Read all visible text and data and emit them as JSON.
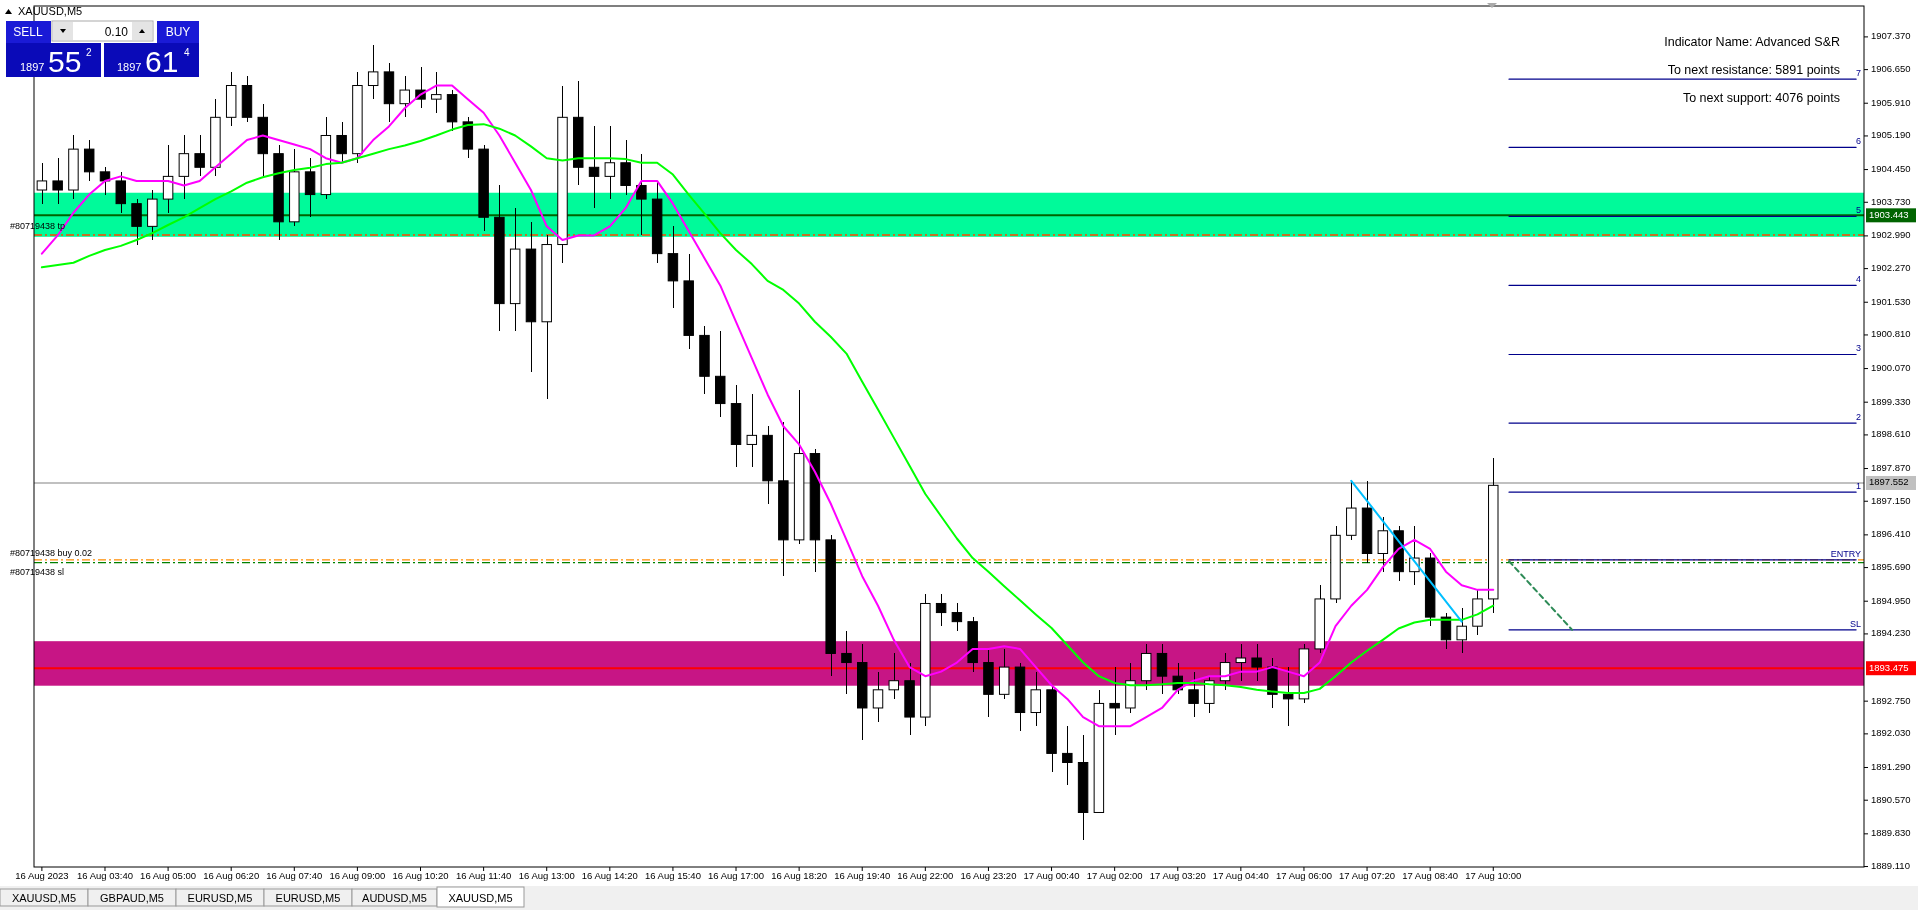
{
  "chart_data": {
    "type": "candlestick",
    "title": "XAUUSD,M5",
    "categories": [
      "16 Aug 2023",
      null,
      null,
      null,
      "16 Aug 03:40",
      null,
      null,
      null,
      "16 Aug 05:00",
      null,
      null,
      null,
      "16 Aug 06:20",
      null,
      null,
      null,
      "16 Aug 07:40",
      null,
      null,
      null,
      "16 Aug 09:00",
      null,
      null,
      null,
      "16 Aug 10:20",
      null,
      null,
      null,
      "16 Aug 11:40",
      null,
      null,
      null,
      "16 Aug 13:00",
      null,
      null,
      null,
      "16 Aug 14:20",
      null,
      null,
      null,
      "16 Aug 15:40",
      null,
      null,
      null,
      "16 Aug 17:00",
      null,
      null,
      null,
      "16 Aug 18:20",
      null,
      null,
      null,
      "16 Aug 19:40",
      null,
      null,
      null,
      "16 Aug 22:00",
      null,
      null,
      null,
      "16 Aug 23:20",
      null,
      null,
      null,
      "17 Aug 00:40",
      null,
      null,
      null,
      "17 Aug 02:00",
      null,
      null,
      null,
      "17 Aug 03:20",
      null,
      null,
      null,
      "17 Aug 04:40",
      null,
      null,
      null,
      "17 Aug 06:00",
      null,
      null,
      null,
      "17 Aug 07:20",
      null,
      null,
      null,
      "17 Aug 08:40",
      null,
      null,
      null,
      "17 Aug 10:00",
      null,
      null,
      null,
      null,
      null,
      null,
      null,
      null,
      null,
      null,
      null,
      null,
      null,
      null,
      null,
      null,
      null,
      null,
      null,
      null,
      null,
      null,
      null
    ],
    "ohlc": [
      [
        1904.0,
        1904.6,
        1903.7,
        1904.2
      ],
      [
        1904.2,
        1904.7,
        1903.7,
        1904.0
      ],
      [
        1904.0,
        1905.2,
        1903.8,
        1904.9
      ],
      [
        1904.9,
        1905.1,
        1904.2,
        1904.4
      ],
      [
        1904.4,
        1904.5,
        1903.9,
        1904.2
      ],
      [
        1904.2,
        1904.4,
        1903.5,
        1903.7
      ],
      [
        1903.7,
        1903.8,
        1902.8,
        1903.2
      ],
      [
        1903.2,
        1904.0,
        1902.9,
        1903.8
      ],
      [
        1903.8,
        1905.0,
        1903.5,
        1904.3
      ],
      [
        1904.3,
        1905.2,
        1903.8,
        1904.8
      ],
      [
        1904.8,
        1905.2,
        1904.3,
        1904.5
      ],
      [
        1904.5,
        1906.0,
        1904.3,
        1905.6
      ],
      [
        1905.6,
        1906.6,
        1905.4,
        1906.3
      ],
      [
        1906.3,
        1906.5,
        1905.5,
        1905.6
      ],
      [
        1905.6,
        1905.9,
        1904.3,
        1904.8
      ],
      [
        1904.8,
        1905.0,
        1902.9,
        1903.3
      ],
      [
        1903.3,
        1904.9,
        1903.2,
        1904.4
      ],
      [
        1904.4,
        1904.7,
        1903.4,
        1903.9
      ],
      [
        1903.9,
        1905.6,
        1903.8,
        1905.2
      ],
      [
        1905.2,
        1905.5,
        1904.6,
        1904.8
      ],
      [
        1904.8,
        1906.6,
        1904.6,
        1906.3
      ],
      [
        1906.3,
        1907.2,
        1906.0,
        1906.6
      ],
      [
        1906.6,
        1906.8,
        1905.5,
        1905.9
      ],
      [
        1905.9,
        1906.5,
        1905.6,
        1906.2
      ],
      [
        1906.2,
        1906.7,
        1905.8,
        1906.0
      ],
      [
        1906.0,
        1906.6,
        1905.7,
        1906.1
      ],
      [
        1906.1,
        1906.2,
        1905.3,
        1905.5
      ],
      [
        1905.5,
        1905.6,
        1904.7,
        1904.9
      ],
      [
        1904.9,
        1905.0,
        1903.1,
        1903.4
      ],
      [
        1903.4,
        1904.1,
        1900.9,
        1901.5
      ],
      [
        1901.5,
        1903.6,
        1900.9,
        1902.7
      ],
      [
        1902.7,
        1903.3,
        1900.0,
        1901.1
      ],
      [
        1901.1,
        1903.0,
        1899.4,
        1902.8
      ],
      [
        1902.8,
        1906.3,
        1902.4,
        1905.6
      ],
      [
        1905.6,
        1906.4,
        1904.1,
        1904.5
      ],
      [
        1904.5,
        1905.4,
        1903.6,
        1904.3
      ],
      [
        1904.3,
        1905.4,
        1903.8,
        1904.6
      ],
      [
        1904.6,
        1905.1,
        1903.9,
        1904.1
      ],
      [
        1904.1,
        1904.8,
        1903.0,
        1903.8
      ],
      [
        1903.8,
        1904.2,
        1902.4,
        1902.6
      ],
      [
        1902.6,
        1903.2,
        1901.4,
        1902.0
      ],
      [
        1902.0,
        1902.6,
        1900.5,
        1900.8
      ],
      [
        1900.8,
        1901.0,
        1899.5,
        1899.9
      ],
      [
        1899.9,
        1900.9,
        1899.0,
        1899.3
      ],
      [
        1899.3,
        1899.7,
        1897.9,
        1898.4
      ],
      [
        1898.4,
        1899.5,
        1897.9,
        1898.6
      ],
      [
        1898.6,
        1898.8,
        1897.1,
        1897.6
      ],
      [
        1897.6,
        1898.9,
        1895.5,
        1896.3
      ],
      [
        1896.3,
        1899.6,
        1896.2,
        1898.2
      ],
      [
        1898.2,
        1898.3,
        1895.6,
        1896.3
      ],
      [
        1896.3,
        1896.4,
        1893.3,
        1893.8
      ],
      [
        1893.8,
        1894.3,
        1892.9,
        1893.6
      ],
      [
        1893.6,
        1894.0,
        1891.9,
        1892.6
      ],
      [
        1892.6,
        1893.4,
        1892.3,
        1893.0
      ],
      [
        1893.0,
        1893.8,
        1892.8,
        1893.2
      ],
      [
        1893.2,
        1893.6,
        1892.0,
        1892.4
      ],
      [
        1892.4,
        1895.1,
        1892.2,
        1894.9
      ],
      [
        1894.9,
        1895.1,
        1894.4,
        1894.7
      ],
      [
        1894.7,
        1894.9,
        1894.3,
        1894.5
      ],
      [
        1894.5,
        1894.6,
        1893.4,
        1893.6
      ],
      [
        1893.6,
        1893.9,
        1892.4,
        1892.9
      ],
      [
        1892.9,
        1893.9,
        1892.8,
        1893.5
      ],
      [
        1893.5,
        1893.6,
        1892.1,
        1892.5
      ],
      [
        1892.5,
        1893.4,
        1892.2,
        1893.0
      ],
      [
        1893.0,
        1893.1,
        1891.2,
        1891.6
      ],
      [
        1891.6,
        1892.2,
        1890.9,
        1891.4
      ],
      [
        1891.4,
        1892.0,
        1889.7,
        1890.3
      ],
      [
        1890.3,
        1893.0,
        1890.3,
        1892.7
      ],
      [
        1892.7,
        1893.5,
        1892.0,
        1892.6
      ],
      [
        1892.6,
        1893.6,
        1892.5,
        1893.2
      ],
      [
        1893.2,
        1894.0,
        1893.0,
        1893.8
      ],
      [
        1893.8,
        1894.0,
        1892.9,
        1893.3
      ],
      [
        1893.3,
        1893.6,
        1892.9,
        1893.0
      ],
      [
        1893.0,
        1893.4,
        1892.4,
        1892.7
      ],
      [
        1892.7,
        1893.3,
        1892.5,
        1893.2
      ],
      [
        1893.2,
        1893.8,
        1893.0,
        1893.6
      ],
      [
        1893.6,
        1894.0,
        1893.2,
        1893.7
      ],
      [
        1893.7,
        1894.0,
        1893.2,
        1893.5
      ],
      [
        1893.5,
        1893.7,
        1892.6,
        1892.9
      ],
      [
        1892.9,
        1893.5,
        1892.2,
        1892.8
      ],
      [
        1892.8,
        1894.0,
        1892.7,
        1893.9
      ],
      [
        1893.9,
        1895.3,
        1893.8,
        1895.0
      ],
      [
        1895.0,
        1896.6,
        1894.9,
        1896.4
      ],
      [
        1896.4,
        1897.6,
        1896.3,
        1897.0
      ],
      [
        1897.0,
        1897.6,
        1895.8,
        1896.0
      ],
      [
        1896.0,
        1896.8,
        1895.6,
        1896.5
      ],
      [
        1896.5,
        1896.6,
        1895.4,
        1895.6
      ],
      [
        1895.6,
        1896.6,
        1895.3,
        1895.9
      ],
      [
        1895.9,
        1896.0,
        1894.4,
        1894.6
      ],
      [
        1894.6,
        1894.7,
        1893.9,
        1894.1
      ],
      [
        1894.1,
        1894.8,
        1893.8,
        1894.4
      ],
      [
        1894.4,
        1895.2,
        1894.2,
        1895.0
      ],
      [
        1895.0,
        1898.1,
        1894.7,
        1897.5
      ],
      null,
      null,
      null,
      null,
      null,
      null,
      null,
      null,
      null,
      null,
      null,
      null,
      null,
      null,
      null,
      null,
      null,
      null,
      null,
      null,
      null,
      null,
      null
    ],
    "series": [
      {
        "type": "line",
        "color": "#ff00ff",
        "values": [
          1902.6,
          1903.0,
          1903.5,
          1903.9,
          1904.2,
          1904.3,
          1904.2,
          1904.2,
          1904.2,
          1904.1,
          1904.2,
          1904.5,
          1904.8,
          1905.1,
          1905.2,
          1905.1,
          1905.0,
          1904.9,
          1904.7,
          1904.6,
          1904.7,
          1905.1,
          1905.4,
          1905.8,
          1906.1,
          1906.3,
          1906.3,
          1906.0,
          1905.7,
          1905.2,
          1904.6,
          1904.0,
          1903.2,
          1902.9,
          1903.0,
          1903.0,
          1903.2,
          1903.6,
          1904.2,
          1904.2,
          1903.7,
          1903.1,
          1902.5,
          1901.9,
          1901.1,
          1900.3,
          1899.5,
          1898.8,
          1898.4,
          1897.8,
          1897.1,
          1896.3,
          1895.5,
          1894.85,
          1894.1,
          1893.5,
          1893.3,
          1893.4,
          1893.6,
          1893.9,
          1893.9,
          1893.96,
          1893.9,
          1893.5,
          1893.1,
          1892.8,
          1892.4,
          1892.2,
          1892.2,
          1892.2,
          1892.4,
          1892.6,
          1893.0,
          1893.2,
          1893.3,
          1893.3,
          1893.4,
          1893.4,
          1893.5,
          1893.4,
          1893.3,
          1893.6,
          1894.4,
          1894.85,
          1895.2,
          1895.7,
          1896.1,
          1896.3,
          1896.1,
          1895.6,
          1895.3,
          1895.2,
          1895.2,
          null,
          null,
          null,
          null,
          null,
          null,
          null,
          null,
          null,
          null,
          null,
          null,
          null,
          null,
          null,
          null,
          null,
          null,
          null,
          null,
          null,
          null,
          null
        ]
      },
      {
        "type": "line",
        "color": "#00ff00",
        "values": [
          1902.3,
          1902.35,
          1902.4,
          1902.55,
          1902.68,
          1902.77,
          1902.9,
          1903.05,
          1903.23,
          1903.4,
          1903.6,
          1903.8,
          1903.97,
          1904.16,
          1904.28,
          1904.37,
          1904.44,
          1904.49,
          1904.57,
          1904.6,
          1904.7,
          1904.8,
          1904.9,
          1904.98,
          1905.08,
          1905.2,
          1905.33,
          1905.43,
          1905.45,
          1905.35,
          1905.2,
          1904.96,
          1904.7,
          1904.65,
          1904.7,
          1904.7,
          1904.7,
          1904.68,
          1904.6,
          1904.6,
          1904.34,
          1903.9,
          1903.48,
          1903.05,
          1902.68,
          1902.37,
          1902.0,
          1901.8,
          1901.5,
          1901.1,
          1900.77,
          1900.4,
          1899.78,
          1899.17,
          1898.55,
          1897.93,
          1897.31,
          1896.82,
          1896.33,
          1895.9,
          1895.6,
          1895.28,
          1894.97,
          1894.66,
          1894.36,
          1893.98,
          1893.6,
          1893.3,
          1893.15,
          1893.1,
          1893.1,
          1893.12,
          1893.15,
          1893.15,
          1893.12,
          1893.1,
          1893.06,
          1893.0,
          1892.96,
          1892.93,
          1892.93,
          1893.02,
          1893.3,
          1893.6,
          1893.86,
          1894.1,
          1894.35,
          1894.48,
          1894.54,
          1894.54,
          1894.54,
          1894.66,
          1894.85,
          null,
          null,
          null,
          null,
          null,
          null,
          null,
          null,
          null,
          null,
          null,
          null,
          null,
          null,
          null,
          null,
          null,
          null,
          null,
          null,
          null,
          null,
          null
        ]
      },
      {
        "type": "line",
        "color": "#00bfff",
        "values": [
          null,
          null,
          null,
          null,
          null,
          null,
          null,
          null,
          null,
          null,
          null,
          null,
          null,
          null,
          null,
          null,
          null,
          null,
          null,
          null,
          null,
          null,
          null,
          null,
          null,
          null,
          null,
          null,
          null,
          null,
          null,
          null,
          null,
          null,
          null,
          null,
          null,
          null,
          null,
          null,
          null,
          null,
          null,
          null,
          null,
          null,
          null,
          null,
          null,
          null,
          null,
          null,
          null,
          null,
          null,
          null,
          null,
          null,
          null,
          null,
          null,
          null,
          null,
          null,
          null,
          null,
          null,
          null,
          null,
          null,
          null,
          null,
          null,
          null,
          null,
          null,
          null,
          null,
          null,
          null,
          null,
          null,
          null,
          1897.6,
          null,
          null,
          null,
          null,
          null,
          null,
          1894.5,
          null,
          null,
          null,
          null,
          null,
          null,
          null,
          null,
          null,
          null,
          null,
          null,
          null,
          null,
          null,
          null,
          null,
          null,
          null,
          null,
          null,
          null,
          null,
          null,
          null
        ]
      },
      {
        "type": "line",
        "color": "#00008b",
        "values": [
          null,
          null,
          null,
          null,
          null,
          null,
          null,
          null,
          null,
          null,
          null,
          null,
          null,
          null,
          null,
          null,
          null,
          null,
          null,
          null,
          null,
          null,
          null,
          null,
          null,
          null,
          null,
          null,
          null,
          null,
          null,
          null,
          null,
          null,
          null,
          null,
          null,
          null,
          null,
          null,
          null,
          null,
          null,
          null,
          null,
          null,
          null,
          null,
          null,
          null,
          null,
          null,
          null,
          null,
          null,
          null,
          null,
          null,
          null,
          null,
          null,
          null,
          null,
          null,
          null,
          null,
          null,
          null,
          null,
          null,
          null,
          null,
          null,
          null,
          null,
          null,
          null,
          null,
          null,
          null,
          null,
          null,
          null,
          null,
          null,
          null,
          null,
          null,
          null,
          null,
          null,
          null,
          null,
          1906.44,
          1906.44,
          1906.44,
          1906.44,
          1906.44,
          1906.44,
          1906.44,
          1906.44,
          1906.44,
          1906.44,
          1906.44,
          1906.44,
          1906.44,
          1906.44,
          1906.44,
          1906.44,
          1906.44,
          1906.44,
          1906.44,
          1906.44,
          1906.44,
          1906.44,
          1906.44
        ]
      },
      {
        "type": "line",
        "color": "#00008b",
        "values": [
          null,
          null,
          null,
          null,
          null,
          null,
          null,
          null,
          null,
          null,
          null,
          null,
          null,
          null,
          null,
          null,
          null,
          null,
          null,
          null,
          null,
          null,
          null,
          null,
          null,
          null,
          null,
          null,
          null,
          null,
          null,
          null,
          null,
          null,
          null,
          null,
          null,
          null,
          null,
          null,
          null,
          null,
          null,
          null,
          null,
          null,
          null,
          null,
          null,
          null,
          null,
          null,
          null,
          null,
          null,
          null,
          null,
          null,
          null,
          null,
          null,
          null,
          null,
          null,
          null,
          null,
          null,
          null,
          null,
          null,
          null,
          null,
          null,
          null,
          null,
          null,
          null,
          null,
          null,
          null,
          null,
          null,
          null,
          null,
          null,
          null,
          null,
          null,
          null,
          null,
          null,
          null,
          null,
          1904.94,
          1904.94,
          1904.94,
          1904.94,
          1904.94,
          1904.94,
          1904.94,
          1904.94,
          1904.94,
          1904.94,
          1904.94,
          1904.94,
          1904.94,
          1904.94,
          1904.94,
          1904.94,
          1904.94,
          1904.94,
          1904.94,
          1904.94,
          1904.94,
          1904.94,
          1904.94
        ]
      },
      {
        "type": "line",
        "color": "#00008b",
        "values": [
          null,
          null,
          null,
          null,
          null,
          null,
          null,
          null,
          null,
          null,
          null,
          null,
          null,
          null,
          null,
          null,
          null,
          null,
          null,
          null,
          null,
          null,
          null,
          null,
          null,
          null,
          null,
          null,
          null,
          null,
          null,
          null,
          null,
          null,
          null,
          null,
          null,
          null,
          null,
          null,
          null,
          null,
          null,
          null,
          null,
          null,
          null,
          null,
          null,
          null,
          null,
          null,
          null,
          null,
          null,
          null,
          null,
          null,
          null,
          null,
          null,
          null,
          null,
          null,
          null,
          null,
          null,
          null,
          null,
          null,
          null,
          null,
          null,
          null,
          null,
          null,
          null,
          null,
          null,
          null,
          null,
          null,
          null,
          null,
          null,
          null,
          null,
          null,
          null,
          null,
          null,
          null,
          null,
          1903.42,
          1903.42,
          1903.42,
          1903.42,
          1903.42,
          1903.42,
          1903.42,
          1903.42,
          1903.42,
          1903.42,
          1903.42,
          1903.42,
          1903.42,
          1903.42,
          1903.42,
          1903.42,
          1903.42,
          1903.42,
          1903.42,
          1903.42,
          1903.42,
          1903.42,
          1903.42
        ]
      },
      {
        "type": "line",
        "color": "#00008b",
        "values": [
          null,
          null,
          null,
          null,
          null,
          null,
          null,
          null,
          null,
          null,
          null,
          null,
          null,
          null,
          null,
          null,
          null,
          null,
          null,
          null,
          null,
          null,
          null,
          null,
          null,
          null,
          null,
          null,
          null,
          null,
          null,
          null,
          null,
          null,
          null,
          null,
          null,
          null,
          null,
          null,
          null,
          null,
          null,
          null,
          null,
          null,
          null,
          null,
          null,
          null,
          null,
          null,
          null,
          null,
          null,
          null,
          null,
          null,
          null,
          null,
          null,
          null,
          null,
          null,
          null,
          null,
          null,
          null,
          null,
          null,
          null,
          null,
          null,
          null,
          null,
          null,
          null,
          null,
          null,
          null,
          null,
          null,
          null,
          null,
          null,
          null,
          null,
          null,
          null,
          null,
          null,
          null,
          null,
          1901.9,
          1901.9,
          1901.9,
          1901.9,
          1901.9,
          1901.9,
          1901.9,
          1901.9,
          1901.9,
          1901.9,
          1901.9,
          1901.9,
          1901.9,
          1901.9,
          1901.9,
          1901.9,
          1901.9,
          1901.9,
          1901.9,
          1901.9,
          1901.9,
          1901.9,
          1901.9
        ]
      },
      {
        "type": "line",
        "color": "#00008b",
        "values": [
          null,
          null,
          null,
          null,
          null,
          null,
          null,
          null,
          null,
          null,
          null,
          null,
          null,
          null,
          null,
          null,
          null,
          null,
          null,
          null,
          null,
          null,
          null,
          null,
          null,
          null,
          null,
          null,
          null,
          null,
          null,
          null,
          null,
          null,
          null,
          null,
          null,
          null,
          null,
          null,
          null,
          null,
          null,
          null,
          null,
          null,
          null,
          null,
          null,
          null,
          null,
          null,
          null,
          null,
          null,
          null,
          null,
          null,
          null,
          null,
          null,
          null,
          null,
          null,
          null,
          null,
          null,
          null,
          null,
          null,
          null,
          null,
          null,
          null,
          null,
          null,
          null,
          null,
          null,
          null,
          null,
          null,
          null,
          null,
          null,
          null,
          null,
          null,
          null,
          null,
          null,
          null,
          null,
          1900.38,
          1900.38,
          1900.38,
          1900.38,
          1900.38,
          1900.38,
          1900.38,
          1900.38,
          1900.38,
          1900.38,
          1900.38,
          1900.38,
          1900.38,
          1900.38,
          1900.38,
          1900.38,
          1900.38,
          1900.38,
          1900.38,
          1900.38,
          1900.38,
          1900.38,
          1900.38
        ]
      },
      {
        "type": "line",
        "color": "#00008b",
        "values": [
          null,
          null,
          null,
          null,
          null,
          null,
          null,
          null,
          null,
          null,
          null,
          null,
          null,
          null,
          null,
          null,
          null,
          null,
          null,
          null,
          null,
          null,
          null,
          null,
          null,
          null,
          null,
          null,
          null,
          null,
          null,
          null,
          null,
          null,
          null,
          null,
          null,
          null,
          null,
          null,
          null,
          null,
          null,
          null,
          null,
          null,
          null,
          null,
          null,
          null,
          null,
          null,
          null,
          null,
          null,
          null,
          null,
          null,
          null,
          null,
          null,
          null,
          null,
          null,
          null,
          null,
          null,
          null,
          null,
          null,
          null,
          null,
          null,
          null,
          null,
          null,
          null,
          null,
          null,
          null,
          null,
          null,
          null,
          null,
          null,
          null,
          null,
          null,
          null,
          null,
          null,
          null,
          null,
          1898.87,
          1898.87,
          1898.87,
          1898.87,
          1898.87,
          1898.87,
          1898.87,
          1898.87,
          1898.87,
          1898.87,
          1898.87,
          1898.87,
          1898.87,
          1898.87,
          1898.87,
          1898.87,
          1898.87,
          1898.87,
          1898.87,
          1898.87,
          1898.87,
          1898.87,
          1898.87
        ]
      },
      {
        "type": "line",
        "color": "#00008b",
        "values": [
          null,
          null,
          null,
          null,
          null,
          null,
          null,
          null,
          null,
          null,
          null,
          null,
          null,
          null,
          null,
          null,
          null,
          null,
          null,
          null,
          null,
          null,
          null,
          null,
          null,
          null,
          null,
          null,
          null,
          null,
          null,
          null,
          null,
          null,
          null,
          null,
          null,
          null,
          null,
          null,
          null,
          null,
          null,
          null,
          null,
          null,
          null,
          null,
          null,
          null,
          null,
          null,
          null,
          null,
          null,
          null,
          null,
          null,
          null,
          null,
          null,
          null,
          null,
          null,
          null,
          null,
          null,
          null,
          null,
          null,
          null,
          null,
          null,
          null,
          null,
          null,
          null,
          null,
          null,
          null,
          null,
          null,
          null,
          null,
          null,
          null,
          null,
          null,
          null,
          null,
          null,
          null,
          null,
          1897.35,
          1897.35,
          1897.35,
          1897.35,
          1897.35,
          1897.35,
          1897.35,
          1897.35,
          1897.35,
          1897.35,
          1897.35,
          1897.35,
          1897.35,
          1897.35,
          1897.35,
          1897.35,
          1897.35,
          1897.35,
          1897.35,
          1897.35,
          1897.35,
          1897.35,
          1897.35
        ]
      },
      {
        "type": "line",
        "color": "#00008b",
        "values": [
          null,
          null,
          null,
          null,
          null,
          null,
          null,
          null,
          null,
          null,
          null,
          null,
          null,
          null,
          null,
          null,
          null,
          null,
          null,
          null,
          null,
          null,
          null,
          null,
          null,
          null,
          null,
          null,
          null,
          null,
          null,
          null,
          null,
          null,
          null,
          null,
          null,
          null,
          null,
          null,
          null,
          null,
          null,
          null,
          null,
          null,
          null,
          null,
          null,
          null,
          null,
          null,
          null,
          null,
          null,
          null,
          null,
          null,
          null,
          null,
          null,
          null,
          null,
          null,
          null,
          null,
          null,
          null,
          null,
          null,
          null,
          null,
          null,
          null,
          null,
          null,
          null,
          null,
          null,
          null,
          null,
          null,
          null,
          null,
          null,
          null,
          null,
          null,
          null,
          null,
          null,
          null,
          null,
          1895.86,
          1895.86,
          1895.86,
          1895.86,
          1895.86,
          1895.86,
          1895.86,
          1895.86,
          1895.86,
          1895.86,
          1895.86,
          1895.86,
          1895.86,
          1895.86,
          1895.86,
          1895.86,
          1895.86,
          1895.86,
          1895.86,
          1895.86,
          1895.86,
          1895.86,
          1895.86
        ]
      },
      {
        "type": "line",
        "color": "#00008b",
        "values": [
          null,
          null,
          null,
          null,
          null,
          null,
          null,
          null,
          null,
          null,
          null,
          null,
          null,
          null,
          null,
          null,
          null,
          null,
          null,
          null,
          null,
          null,
          null,
          null,
          null,
          null,
          null,
          null,
          null,
          null,
          null,
          null,
          null,
          null,
          null,
          null,
          null,
          null,
          null,
          null,
          null,
          null,
          null,
          null,
          null,
          null,
          null,
          null,
          null,
          null,
          null,
          null,
          null,
          null,
          null,
          null,
          null,
          null,
          null,
          null,
          null,
          null,
          null,
          null,
          null,
          null,
          null,
          null,
          null,
          null,
          null,
          null,
          null,
          null,
          null,
          null,
          null,
          null,
          null,
          null,
          null,
          null,
          null,
          null,
          null,
          null,
          null,
          null,
          null,
          null,
          null,
          null,
          null,
          1894.32,
          1894.32,
          1894.32,
          1894.32,
          1894.32,
          1894.32,
          1894.32,
          1894.32,
          1894.32,
          1894.32,
          1894.32,
          1894.32,
          1894.32,
          1894.32,
          1894.32,
          1894.32,
          1894.32,
          1894.32,
          1894.32,
          1894.32,
          1894.32,
          1894.32,
          1894.32
        ]
      },
      {
        "type": "line",
        "color": "#2e8b57",
        "line_style": "dashed",
        "values": [
          null,
          null,
          null,
          null,
          null,
          null,
          null,
          null,
          null,
          null,
          null,
          null,
          null,
          null,
          null,
          null,
          null,
          null,
          null,
          null,
          null,
          null,
          null,
          null,
          null,
          null,
          null,
          null,
          null,
          null,
          null,
          null,
          null,
          null,
          null,
          null,
          null,
          null,
          null,
          null,
          null,
          null,
          null,
          null,
          null,
          null,
          null,
          null,
          null,
          null,
          null,
          null,
          null,
          null,
          null,
          null,
          null,
          null,
          null,
          null,
          null,
          null,
          null,
          null,
          null,
          null,
          null,
          null,
          null,
          null,
          null,
          null,
          null,
          null,
          null,
          null,
          null,
          null,
          null,
          null,
          null,
          null,
          null,
          null,
          null,
          null,
          null,
          null,
          null,
          null,
          null,
          null,
          null,
          1895.83,
          null,
          null,
          null,
          1894.32,
          null,
          null,
          null,
          null,
          null,
          null,
          null,
          null,
          null,
          null,
          null,
          null,
          null,
          null,
          null,
          null,
          null,
          null
        ]
      }
    ],
    "ylim": [
      1889.1,
      1908.05
    ],
    "yticks": [
      {
        "value": 1889.11,
        "label": "1889.110"
      },
      {
        "value": 1889.83,
        "label": "1889.830"
      },
      {
        "value": 1890.57,
        "label": "1890.570"
      },
      {
        "value": 1891.29,
        "label": "1891.290"
      },
      {
        "value": 1892.03,
        "label": "1892.030"
      },
      {
        "value": 1892.75,
        "label": "1892.750"
      },
      {
        "value": 1894.23,
        "label": "1894.230"
      },
      {
        "value": 1894.95,
        "label": "1894.950"
      },
      {
        "value": 1895.69,
        "label": "1895.690"
      },
      {
        "value": 1896.41,
        "label": "1896.410"
      },
      {
        "value": 1897.15,
        "label": "1897.150"
      },
      {
        "value": 1897.87,
        "label": "1897.870"
      },
      {
        "value": 1898.61,
        "label": "1898.610"
      },
      {
        "value": 1899.33,
        "label": "1899.330"
      },
      {
        "value": 1900.07,
        "label": "1900.070"
      },
      {
        "value": 1900.81,
        "label": "1900.810"
      },
      {
        "value": 1901.53,
        "label": "1901.530"
      },
      {
        "value": 1902.27,
        "label": "1902.270"
      },
      {
        "value": 1902.99,
        "label": "1902.990"
      },
      {
        "value": 1903.73,
        "label": "1903.730"
      },
      {
        "value": 1904.45,
        "label": "1904.450"
      },
      {
        "value": 1905.19,
        "label": "1905.190"
      },
      {
        "value": 1905.91,
        "label": "1905.910"
      },
      {
        "value": 1906.65,
        "label": "1906.650"
      },
      {
        "value": 1907.37,
        "label": "1907.370"
      }
    ],
    "bands": [
      {
        "axis": "y",
        "from": 1902.97,
        "to": 1903.94,
        "color": "#00fa9a"
      },
      {
        "axis": "y",
        "from": 1893.09,
        "to": 1894.07,
        "color": "#c71585"
      }
    ],
    "ref_lines": [
      {
        "axis": "y",
        "value": 1903.443,
        "label": "1903.443",
        "color": "#006400"
      },
      {
        "axis": "y",
        "value": 1897.552,
        "label": "1897.552",
        "color": "#c0c0c0"
      },
      {
        "axis": "y",
        "value": 1893.475,
        "label": "1893.475",
        "color": "#ff0000"
      },
      {
        "axis": "y",
        "value": 1903.01,
        "color": "#ff4500",
        "line_style": "dashed"
      },
      {
        "axis": "y",
        "value": 1895.86,
        "color": "#ff8c00",
        "line_style": "dashed"
      },
      {
        "axis": "y",
        "value": 1895.8,
        "color": "#008000",
        "line_style": "dashed"
      }
    ],
    "annotations": [
      "Indicator Name: Advanced S&R",
      "To next resistance: 5891 points",
      "To next support: 4076 points",
      {
        "text": "#80719438 tp",
        "y": 1903.01
      },
      {
        "text": "#80719438 sl",
        "y": 1895.8
      },
      {
        "text": "#80719438 buy 0.02",
        "y": 1895.86
      },
      {
        "text": "7",
        "y": 1906.44
      },
      {
        "text": "6",
        "y": 1904.94
      },
      {
        "text": "5",
        "y": 1903.42
      },
      {
        "text": "4",
        "y": 1901.9
      },
      {
        "text": "3",
        "y": 1900.38
      },
      {
        "text": "2",
        "y": 1898.87
      },
      {
        "text": "1",
        "y": 1897.35
      },
      {
        "text": "ENTRY",
        "y": 1895.86
      },
      {
        "text": "SL",
        "y": 1894.32
      },
      "SELL",
      "0.10",
      "BUY",
      "1897",
      "55",
      "2",
      "1897",
      "61",
      "4",
      "XAUUSD,M5",
      "GBPAUD,M5",
      "EURUSD,M5",
      "EURUSD,M5",
      "AUDUSD,M5",
      "XAUUSD,M5"
    ]
  }
}
